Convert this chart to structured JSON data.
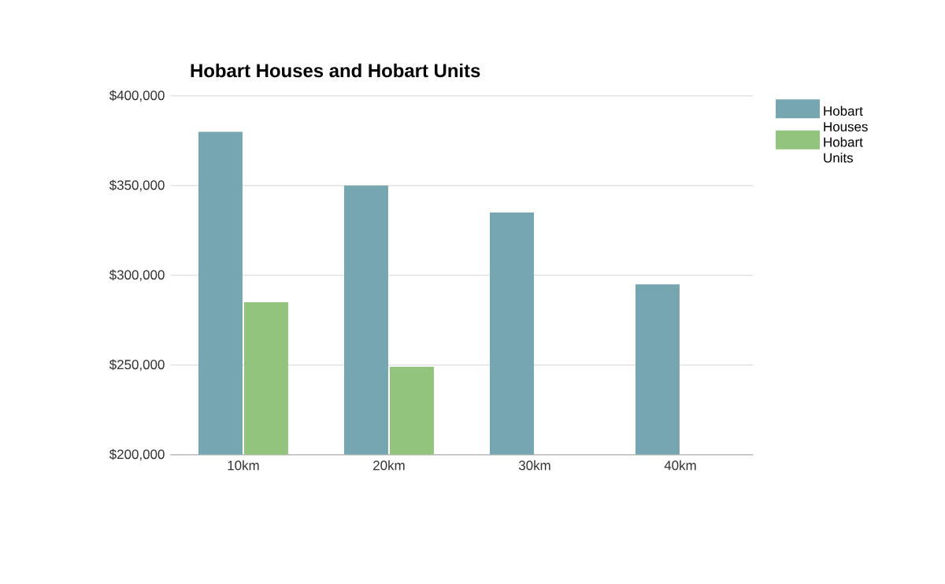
{
  "chart_data": {
    "type": "bar",
    "title": "Hobart Houses and Hobart Units",
    "categories": [
      "10km",
      "20km",
      "30km",
      "40km"
    ],
    "series": [
      {
        "name": "Hobart Houses",
        "color": "#76a7b0",
        "values": [
          380000,
          350000,
          335000,
          295000
        ]
      },
      {
        "name": "Hobart Units",
        "color": "#93c47d",
        "values": [
          285000,
          249000,
          null,
          null
        ]
      }
    ],
    "ylim": [
      200000,
      400000
    ],
    "yticks": [
      {
        "value": 200000,
        "label": "$200,000"
      },
      {
        "value": 250000,
        "label": "$250,000"
      },
      {
        "value": 300000,
        "label": "$300,000"
      },
      {
        "value": 350000,
        "label": "$350,000"
      },
      {
        "value": 400000,
        "label": "$400,000"
      }
    ],
    "grid": "y",
    "legend": "top right"
  }
}
